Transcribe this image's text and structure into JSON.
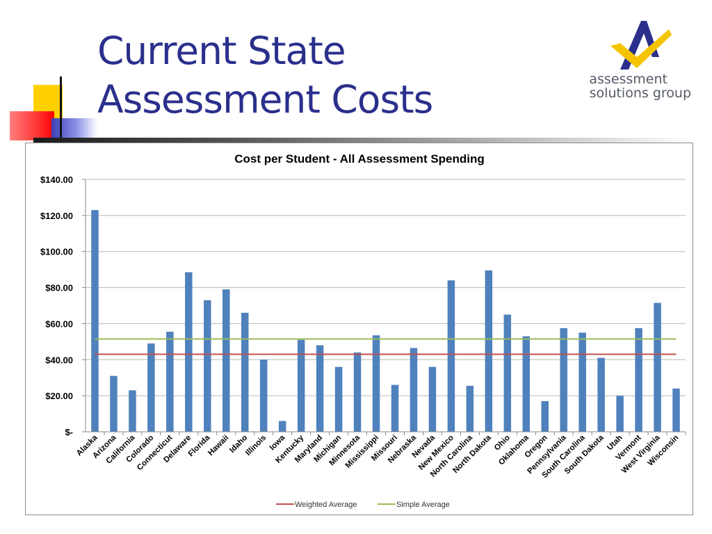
{
  "slide": {
    "title_line1": "Current State",
    "title_line2": "Assessment Costs",
    "title_color": "#2b2f8c"
  },
  "logo": {
    "line1": "assessment",
    "line2": "solutions group",
    "mark_colors": {
      "arch": "#2b2f8c",
      "check": "#f5c400"
    }
  },
  "chart_data": {
    "type": "bar",
    "title": "Cost per Student - All Assessment Spending",
    "xlabel": "",
    "ylabel": "",
    "ylim": [
      0,
      140
    ],
    "yticks": [
      {
        "value": 0,
        "label": "$-"
      },
      {
        "value": 20,
        "label": "$20.00"
      },
      {
        "value": 40,
        "label": "$40.00"
      },
      {
        "value": 60,
        "label": "$60.00"
      },
      {
        "value": 80,
        "label": "$80.00"
      },
      {
        "value": 100,
        "label": "$100.00"
      },
      {
        "value": 120,
        "label": "$120.00"
      },
      {
        "value": 140,
        "label": "$140.00"
      }
    ],
    "grid": true,
    "bar_color": "#4f81bd",
    "categories": [
      "Alaska",
      "Arizona",
      "California",
      "Colorado",
      "Connecticut",
      "Delaware",
      "Florida",
      "Hawaii",
      "Idaho",
      "Illinois",
      "Iowa",
      "Kentucky",
      "Maryland",
      "Michigan",
      "Minnesota",
      "Mississippi",
      "Missouri",
      "Nebraska",
      "Nevada",
      "New Mexico",
      "North Carolina",
      "North Dakota",
      "Ohio",
      "Oklahoma",
      "Oregon",
      "Pennsylvania",
      "South Carolina",
      "South Dakota",
      "Utah",
      "Vermont",
      "West Virginia",
      "Wisconsin"
    ],
    "values": [
      123,
      31,
      23,
      49,
      55.5,
      88.5,
      73,
      79,
      66,
      40,
      6,
      51,
      48,
      36,
      44,
      53.5,
      26,
      46.5,
      36,
      84,
      25.5,
      89.5,
      65,
      53,
      17,
      57.5,
      55,
      41,
      20,
      57.5,
      71.5,
      24
    ],
    "reference_lines": [
      {
        "name": "Weighted Average",
        "value": 43,
        "color": "#c0504d"
      },
      {
        "name": "Simple Average",
        "value": 51.5,
        "color": "#9bbb59"
      }
    ],
    "legend_position": "bottom"
  }
}
